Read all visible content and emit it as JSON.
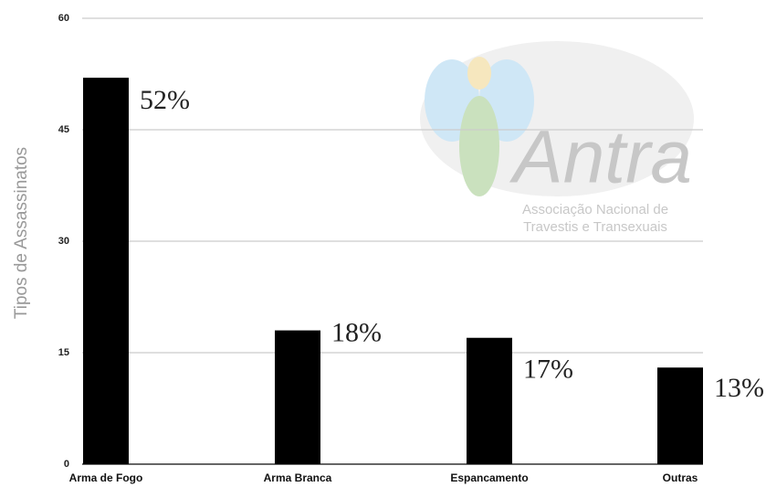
{
  "chart_data": {
    "type": "bar",
    "y_label": "Tipos de Assassinatos",
    "categories": [
      "Arma de Fogo",
      "Arma Branca",
      "Espancamento",
      "Outras"
    ],
    "values": [
      52,
      18,
      17,
      13
    ],
    "value_labels": [
      "52%",
      "18%",
      "17%",
      "13%"
    ],
    "color": "#000000",
    "ylim": [
      0,
      60
    ],
    "yticks": [
      0,
      15,
      30,
      45,
      60
    ],
    "grid": true,
    "watermark": {
      "title": "Antra",
      "lines": [
        "Associação Nacional de",
        "Travestis e Transexuais"
      ]
    }
  }
}
